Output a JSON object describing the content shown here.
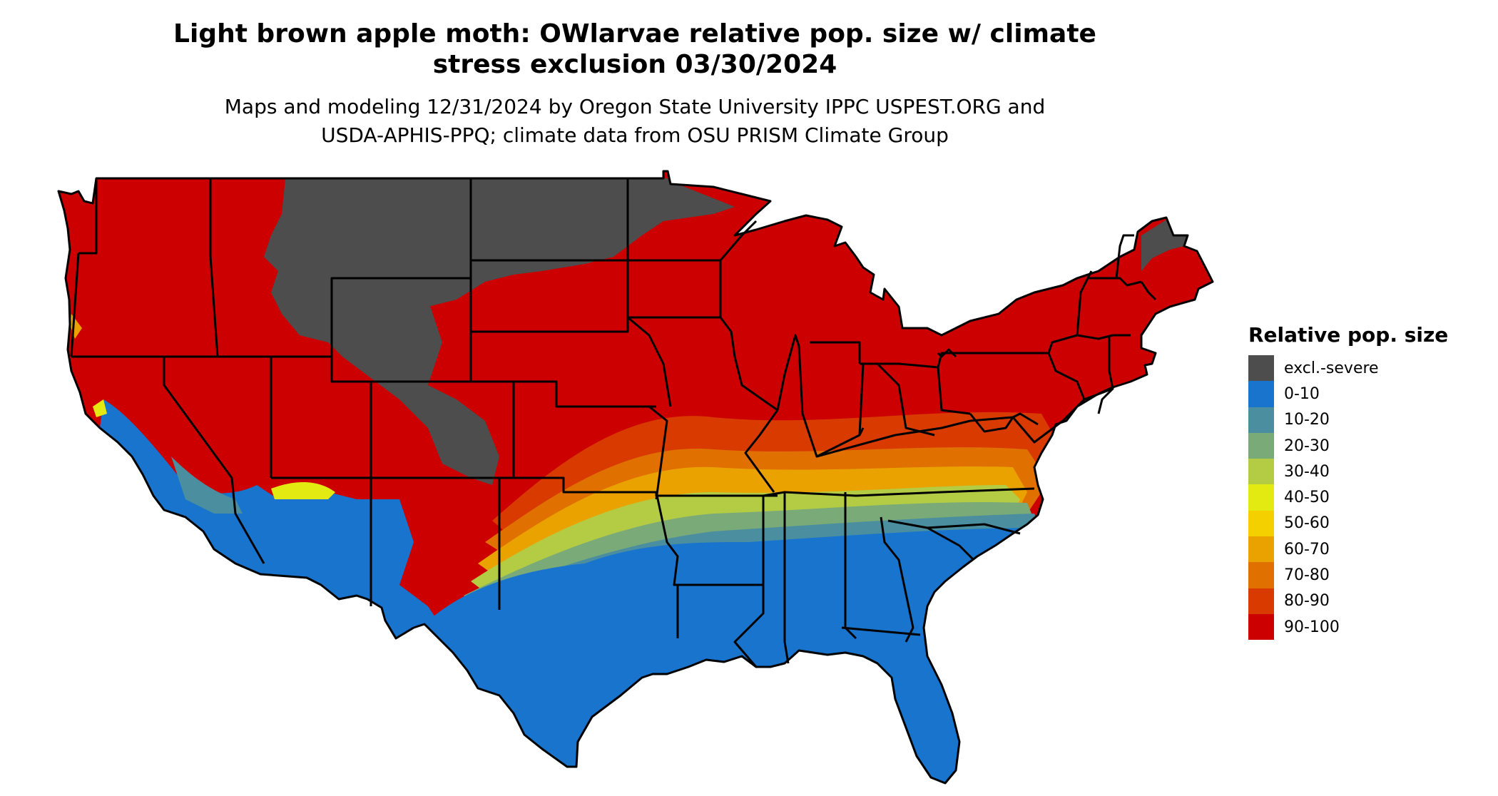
{
  "title": {
    "line1": "Light brown apple moth: OWlarvae relative pop. size w/ climate",
    "line2": "stress exclusion 03/30/2024"
  },
  "subtitle": {
    "line1": "Maps and modeling 12/31/2024 by Oregon State University IPPC USPEST.ORG and",
    "line2": "USDA-APHIS-PPQ; climate data from OSU PRISM Climate Group"
  },
  "legend": {
    "title": "Relative pop. size",
    "items": [
      {
        "label": "excl.-severe",
        "color": "#4d4d4d"
      },
      {
        "label": "0-10",
        "color": "#1874cd"
      },
      {
        "label": "10-20",
        "color": "#4a8ea0"
      },
      {
        "label": "20-30",
        "color": "#7aaa78"
      },
      {
        "label": "30-40",
        "color": "#b4cc44"
      },
      {
        "label": "40-50",
        "color": "#e3ea12"
      },
      {
        "label": "50-60",
        "color": "#f5d000"
      },
      {
        "label": "60-70",
        "color": "#eaa200"
      },
      {
        "label": "70-80",
        "color": "#e07000"
      },
      {
        "label": "80-90",
        "color": "#d83a00"
      },
      {
        "label": "90-100",
        "color": "#cc0000"
      }
    ]
  }
}
